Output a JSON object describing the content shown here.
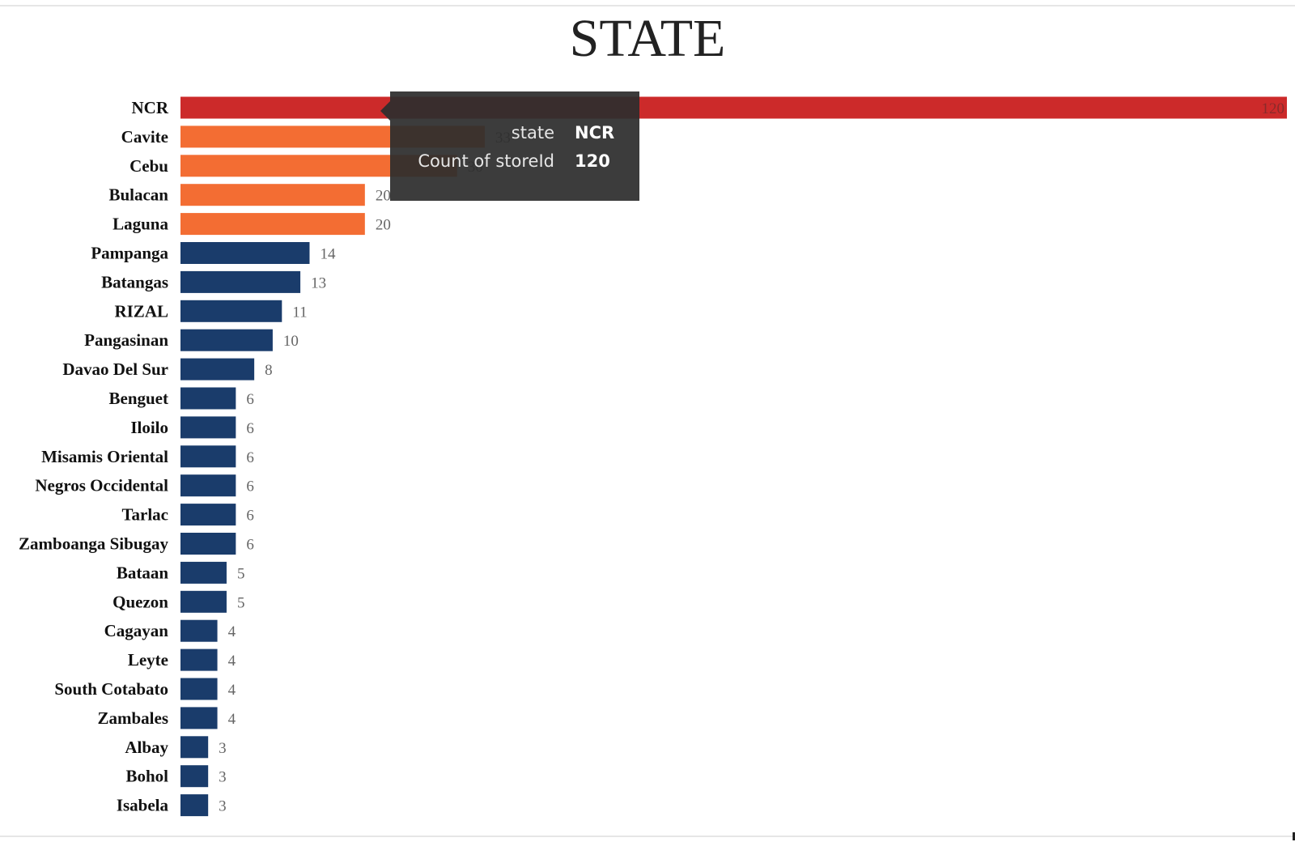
{
  "chart_data": {
    "type": "bar",
    "orientation": "horizontal",
    "title": "STATE",
    "categories": [
      "NCR",
      "Cavite",
      "Cebu",
      "Bulacan",
      "Laguna",
      "Pampanga",
      "Batangas",
      "RIZAL",
      "Pangasinan",
      "Davao Del Sur",
      "Benguet",
      "Iloilo",
      "Misamis Oriental",
      "Negros Occidental",
      "Tarlac",
      "Zamboanga Sibugay",
      "Bataan",
      "Quezon",
      "Cagayan",
      "Leyte",
      "South Cotabato",
      "Zambales",
      "Albay",
      "Bohol",
      "Isabela"
    ],
    "values": [
      120,
      33,
      30,
      20,
      20,
      14,
      13,
      11,
      10,
      8,
      6,
      6,
      6,
      6,
      6,
      6,
      5,
      5,
      4,
      4,
      4,
      4,
      3,
      3,
      3
    ],
    "xlim": [
      0,
      120
    ],
    "grid": false,
    "highlight_index": 0,
    "colors": {
      "highlight": "#cc2a2a",
      "high": "#f36d33",
      "low": "#1a3c6b",
      "label": "#111111",
      "value_label": "#666666"
    },
    "color_groups": [
      "highlight",
      "high",
      "high",
      "high",
      "high",
      "low",
      "low",
      "low",
      "low",
      "low",
      "low",
      "low",
      "low",
      "low",
      "low",
      "low",
      "low",
      "low",
      "low",
      "low",
      "low",
      "low",
      "low",
      "low",
      "low"
    ]
  },
  "tooltip": {
    "rows": [
      {
        "key": "state",
        "value": "NCR"
      },
      {
        "key": "Count of storeId",
        "value": "120"
      }
    ]
  }
}
